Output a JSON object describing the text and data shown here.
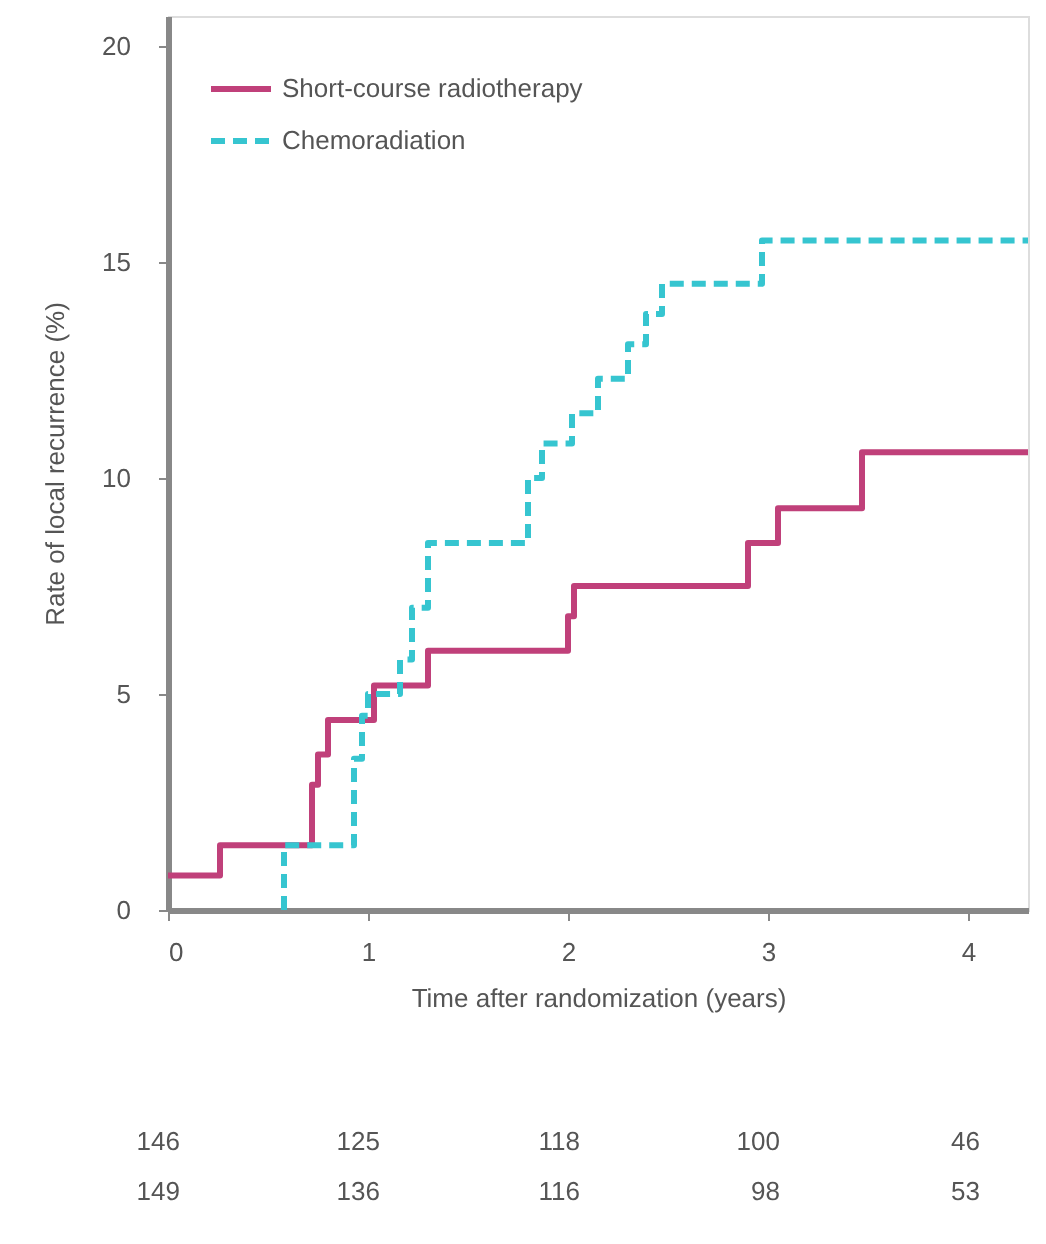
{
  "chart_data": {
    "type": "step",
    "xlabel": "Time after randomization (years)",
    "ylabel": "Rate of local recurrence (%)",
    "xlim": [
      0,
      4.3
    ],
    "xticks": [
      0,
      1,
      2,
      3,
      4
    ],
    "ylim": [
      0,
      20.7
    ],
    "yticks": [
      0,
      5,
      10,
      15,
      20
    ],
    "grid": false,
    "legend": "top left",
    "marker": "none",
    "series": [
      {
        "name": "Short-course radiotherapy",
        "color": "#c0407a",
        "line_style": "solid",
        "x": [
          0,
          0.26,
          0.72,
          0.75,
          0.8,
          1.03,
          1.3,
          2.0,
          2.03,
          2.9,
          3.05,
          3.47,
          4.3
        ],
        "values": [
          0.8,
          1.5,
          2.9,
          3.6,
          4.4,
          5.2,
          6.0,
          6.8,
          7.5,
          8.5,
          9.3,
          10.6,
          10.6
        ]
      },
      {
        "name": "Chemoradiation",
        "color": "#36c5d0",
        "line_style": "dashed",
        "x": [
          0.58,
          0.58,
          0.93,
          0.97,
          1.0,
          1.16,
          1.22,
          1.3,
          1.8,
          1.87,
          2.02,
          2.15,
          2.3,
          2.39,
          2.47,
          2.97,
          4.3
        ],
        "values": [
          0,
          1.5,
          3.5,
          4.5,
          5.0,
          5.8,
          7.0,
          8.5,
          10.0,
          10.8,
          11.5,
          12.3,
          13.1,
          13.8,
          14.5,
          15.5,
          15.5
        ]
      }
    ],
    "annotations": [
      "146",
      "125",
      "118",
      "100",
      "46",
      "149",
      "136",
      "116",
      "98",
      "53"
    ]
  }
}
